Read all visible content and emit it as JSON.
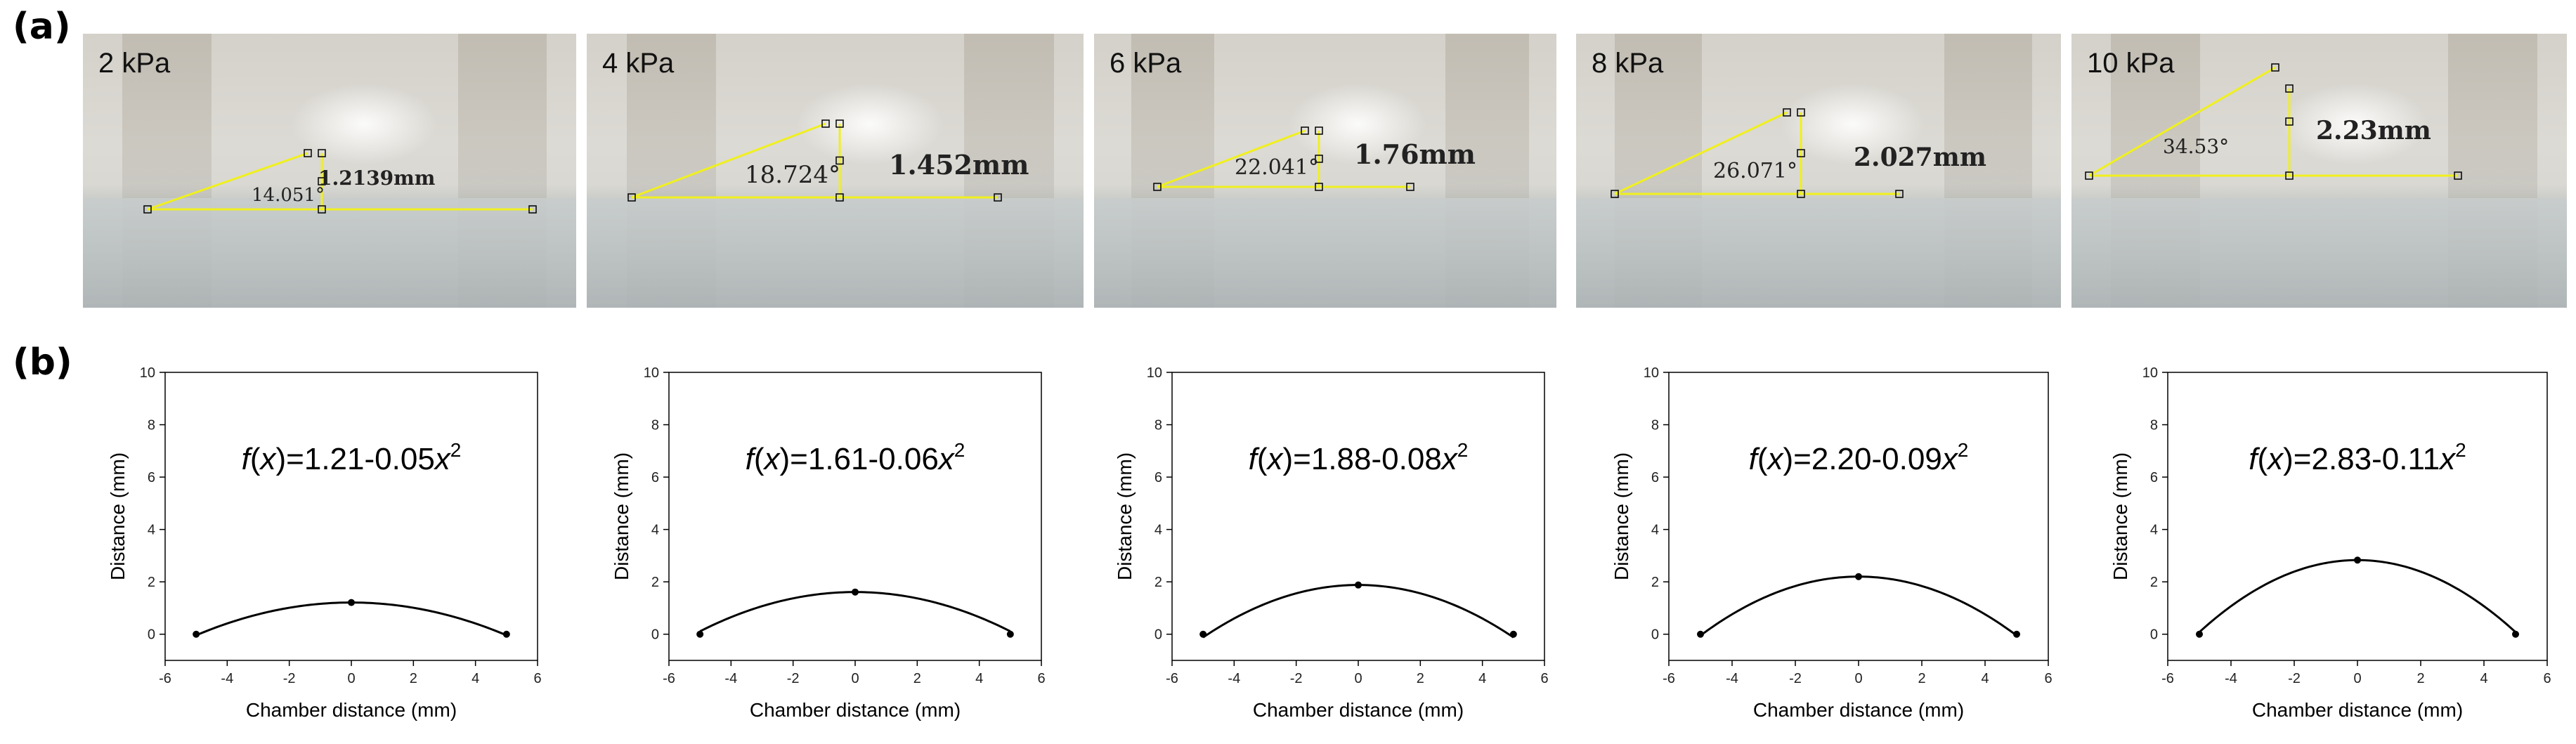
{
  "panel_labels": {
    "a": "(a)",
    "b": "(b)"
  },
  "photos": [
    {
      "label": "2 kPa",
      "angle": "14.051°",
      "height": "1.2139mm"
    },
    {
      "label": "4 kPa",
      "angle": "18.724°",
      "height": "1.452mm"
    },
    {
      "label": "6 kPa",
      "angle": "22.041°",
      "height": "1.76mm"
    },
    {
      "label": "8 kPa",
      "angle": "26.071°",
      "height": "2.027mm"
    },
    {
      "label": "10 kPa",
      "angle": "34.53°",
      "height": "2.23mm"
    }
  ],
  "colors": {
    "annotation": "#f0f01e",
    "curve": "#000000"
  },
  "chart_data": [
    {
      "type": "line",
      "equation": {
        "prefix": "f",
        "var": "x",
        "body": "=1.21-0.05",
        "exp": "2"
      },
      "xlabel": "Chamber distance (mm)",
      "ylabel": "Distance (mm)",
      "xlim": [
        -6,
        6
      ],
      "ylim": [
        -1,
        10
      ],
      "xticks": [
        -6,
        -4,
        -2,
        0,
        2,
        4,
        6
      ],
      "yticks": [
        0,
        2,
        4,
        6,
        8,
        10
      ],
      "fit": {
        "a": 1.21,
        "b": 0.05
      },
      "points": [
        [
          -5,
          0
        ],
        [
          0,
          1.21
        ],
        [
          5,
          0
        ]
      ]
    },
    {
      "type": "line",
      "equation": {
        "prefix": "f",
        "var": "x",
        "body": "=1.61-0.06",
        "exp": "2"
      },
      "xlabel": "Chamber distance (mm)",
      "ylabel": "Distance (mm)",
      "xlim": [
        -6,
        6
      ],
      "ylim": [
        -1,
        10
      ],
      "xticks": [
        -6,
        -4,
        -2,
        0,
        2,
        4,
        6
      ],
      "yticks": [
        0,
        2,
        4,
        6,
        8,
        10
      ],
      "fit": {
        "a": 1.61,
        "b": 0.06
      },
      "points": [
        [
          -5,
          0
        ],
        [
          0,
          1.61
        ],
        [
          5,
          0
        ]
      ]
    },
    {
      "type": "line",
      "equation": {
        "prefix": "f",
        "var": "x",
        "body": "=1.88-0.08",
        "exp": "2"
      },
      "xlabel": "Chamber distance (mm)",
      "ylabel": "Distance (mm)",
      "xlim": [
        -6,
        6
      ],
      "ylim": [
        -1,
        10
      ],
      "xticks": [
        -6,
        -4,
        -2,
        0,
        2,
        4,
        6
      ],
      "yticks": [
        0,
        2,
        4,
        6,
        8,
        10
      ],
      "fit": {
        "a": 1.88,
        "b": 0.08
      },
      "points": [
        [
          -5,
          0
        ],
        [
          0,
          1.88
        ],
        [
          5,
          0
        ]
      ]
    },
    {
      "type": "line",
      "equation": {
        "prefix": "f",
        "var": "x",
        "body": "=2.20-0.09",
        "exp": "2"
      },
      "xlabel": "Chamber distance (mm)",
      "ylabel": "Distance (mm)",
      "xlim": [
        -6,
        6
      ],
      "ylim": [
        -1,
        10
      ],
      "xticks": [
        -6,
        -4,
        -2,
        0,
        2,
        4,
        6
      ],
      "yticks": [
        0,
        2,
        4,
        6,
        8,
        10
      ],
      "fit": {
        "a": 2.2,
        "b": 0.09
      },
      "points": [
        [
          -5,
          0
        ],
        [
          0,
          2.2
        ],
        [
          5,
          0
        ]
      ]
    },
    {
      "type": "line",
      "equation": {
        "prefix": "f",
        "var": "x",
        "body": "=2.83-0.11",
        "exp": "2"
      },
      "xlabel": "Chamber distance (mm)",
      "ylabel": "Distance (mm)",
      "xlim": [
        -6,
        6
      ],
      "ylim": [
        -1,
        10
      ],
      "xticks": [
        -6,
        -4,
        -2,
        0,
        2,
        4,
        6
      ],
      "yticks": [
        0,
        2,
        4,
        6,
        8,
        10
      ],
      "fit": {
        "a": 2.83,
        "b": 0.11
      },
      "points": [
        [
          -5,
          0
        ],
        [
          0,
          2.83
        ],
        [
          5,
          0
        ]
      ]
    }
  ]
}
